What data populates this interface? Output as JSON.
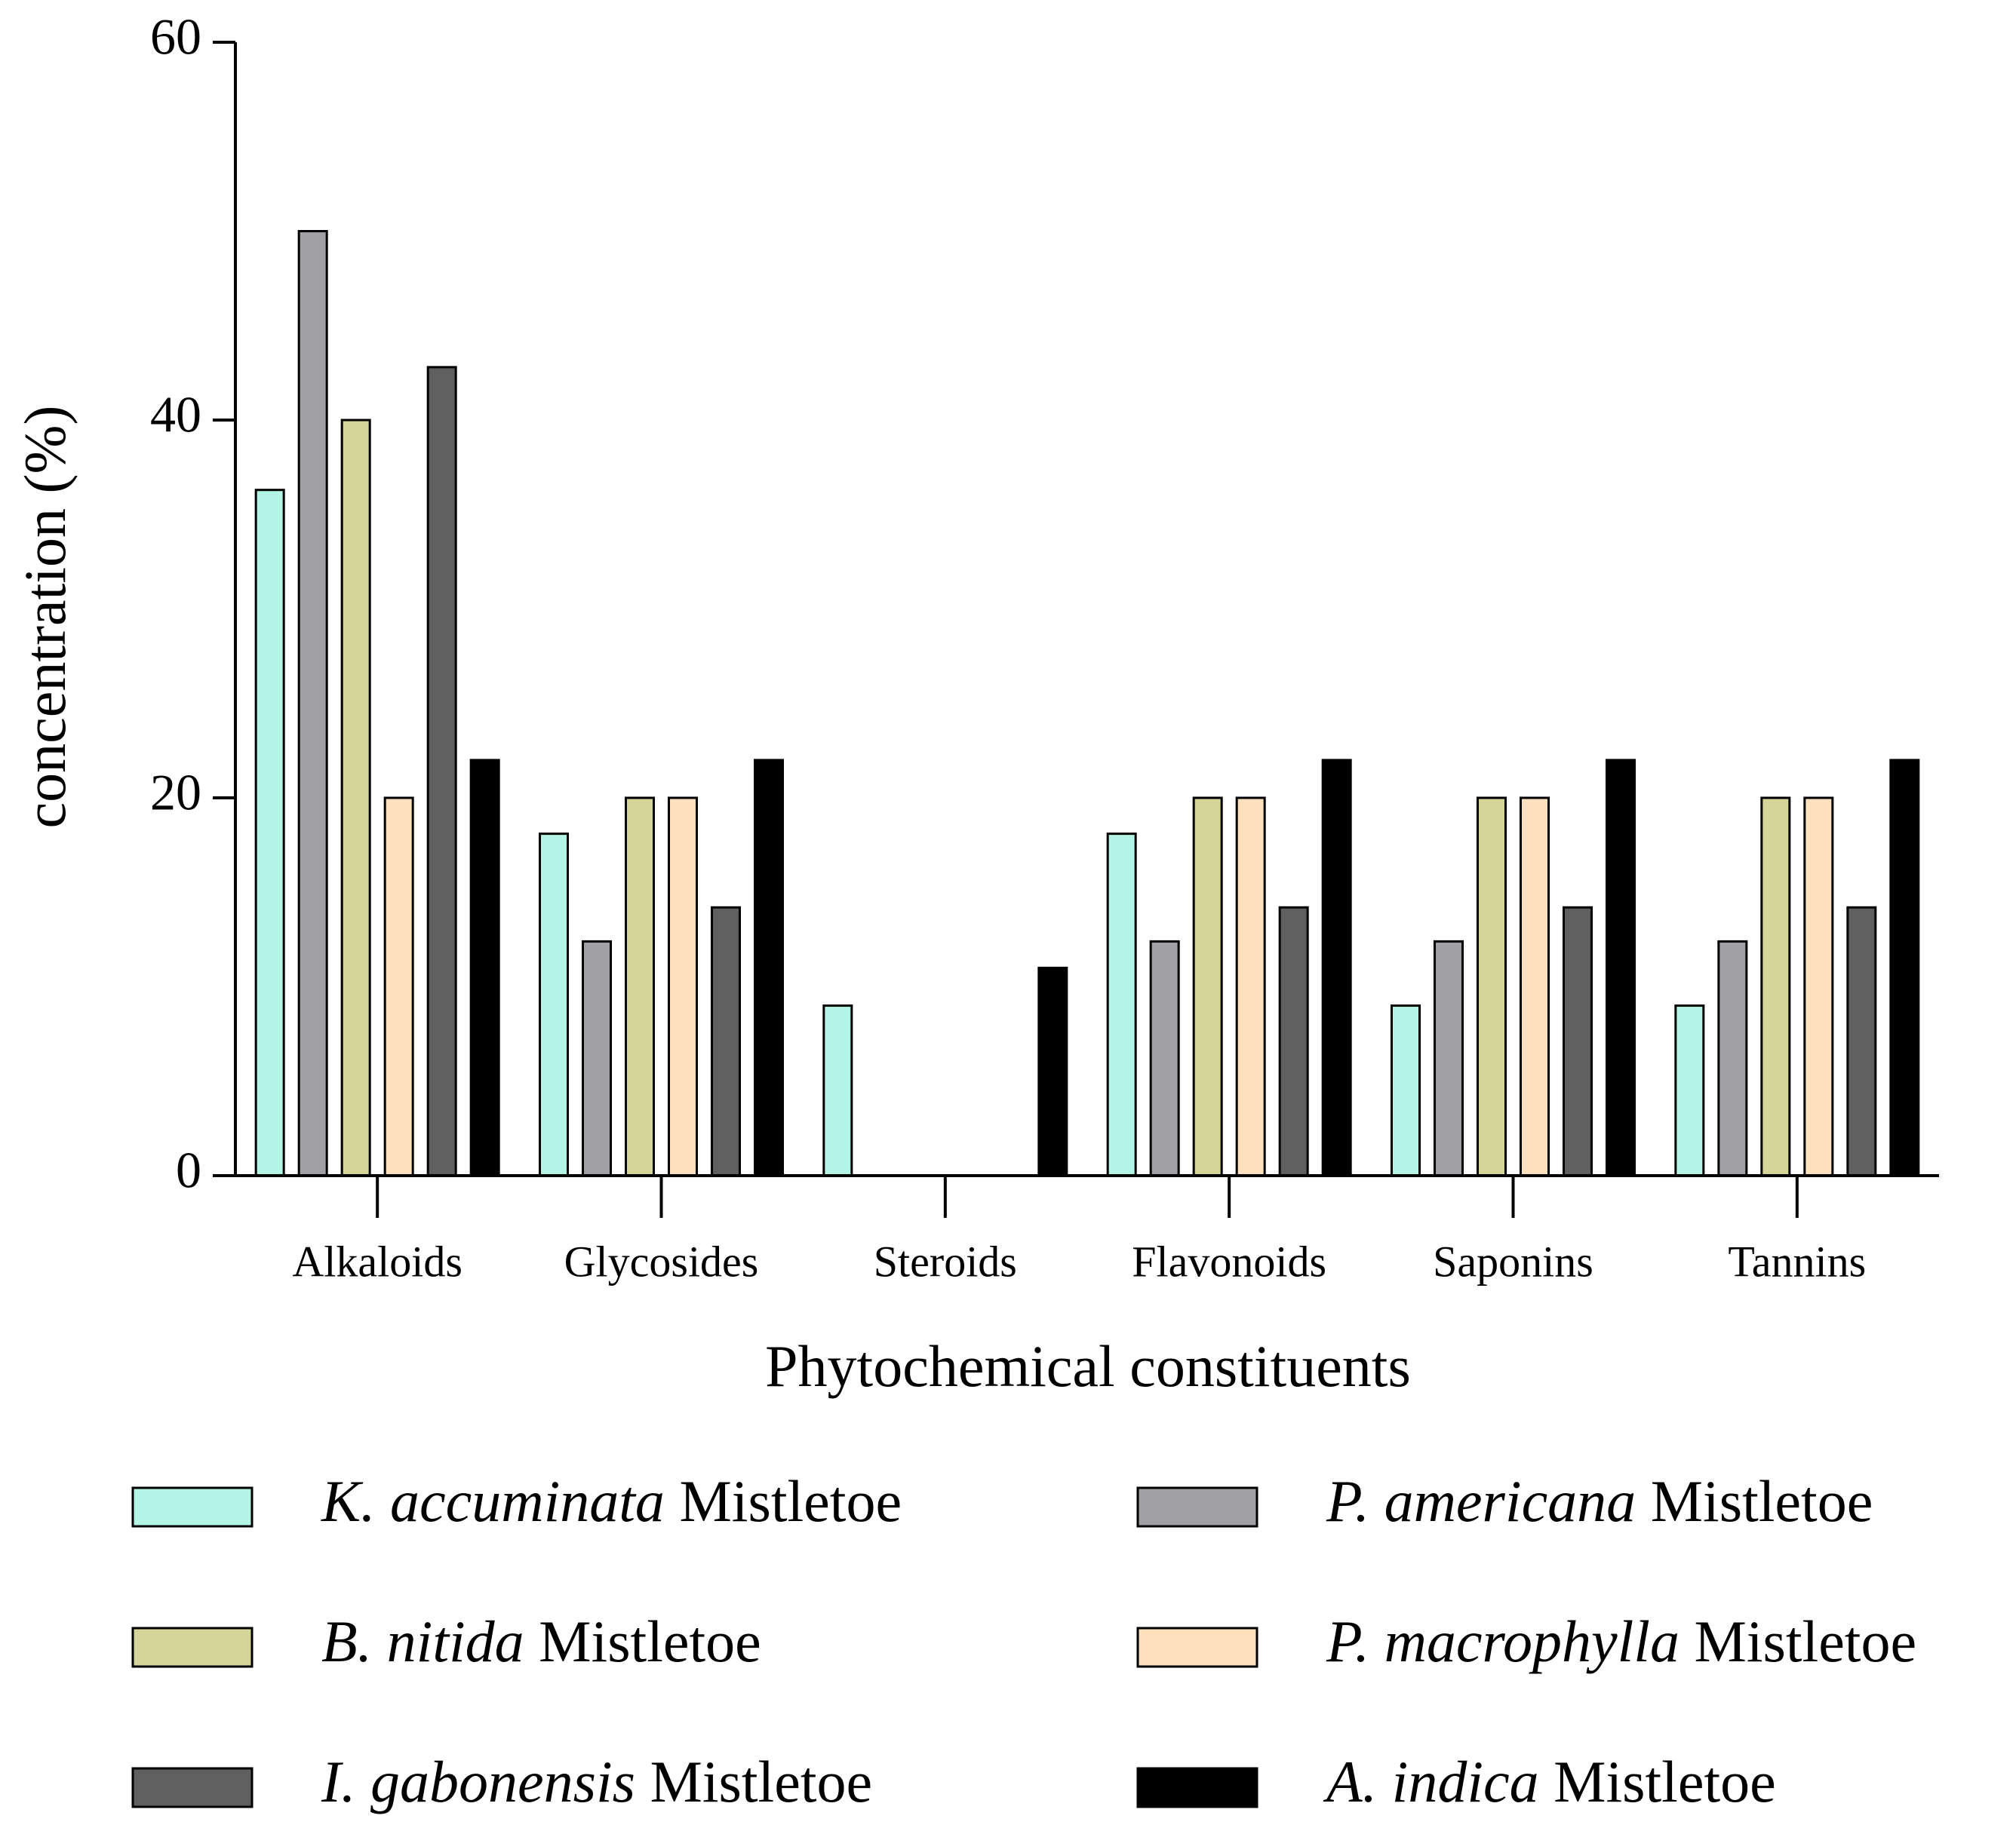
{
  "chart_data": {
    "type": "bar",
    "x_label": "Phytochemical constituents",
    "y_label": "concentration (%)",
    "categories": [
      "Alkaloids",
      "Glycosides",
      "Steroids",
      "Flavonoids",
      "Saponins",
      "Tannins"
    ],
    "series": [
      {
        "name": "K. accuminata Mistletoe",
        "color": "#b3f5e4",
        "values": [
          36.3,
          18.1,
          9.0,
          18.1,
          9.0,
          9.0
        ]
      },
      {
        "name": "P. americana Mistletoe",
        "color": "#a0a0a4",
        "values": [
          50,
          12.4,
          0,
          12.4,
          12.4,
          12.4
        ]
      },
      {
        "name": "B. nitida Mistletoe",
        "color": "#d5d59a",
        "values": [
          40,
          20,
          0,
          20,
          20,
          20
        ]
      },
      {
        "name": "P. macrophylla Mistletoe",
        "color": "#fde0bd",
        "values": [
          20,
          20,
          0,
          20,
          20,
          20
        ]
      },
      {
        "name": "I. gabonensis Mistletoe",
        "color": "#5f5f5f",
        "values": [
          42.8,
          14.2,
          0,
          14.2,
          14.2,
          14.2
        ]
      },
      {
        "name": "A. indica Mistletoe",
        "color": "#000000",
        "values": [
          22,
          22,
          11,
          22,
          22,
          22
        ]
      }
    ],
    "ylim": [
      0,
      60
    ],
    "yticks": [
      0,
      20,
      40,
      60
    ],
    "grid": false,
    "legend": "bottom"
  }
}
